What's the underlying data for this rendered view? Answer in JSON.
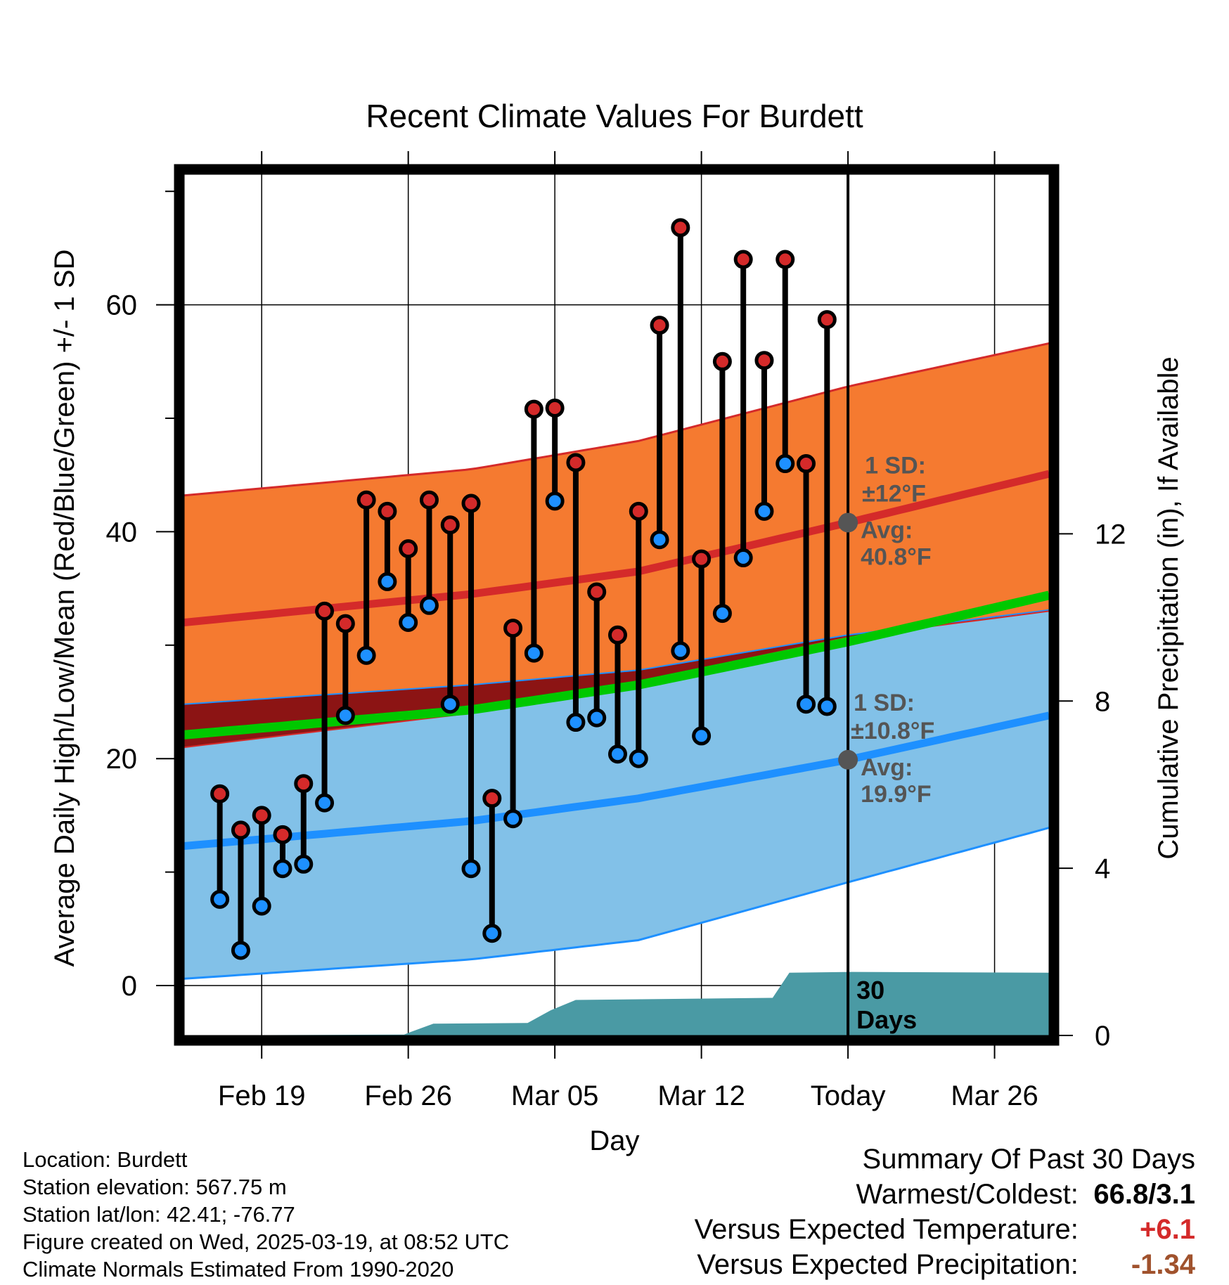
{
  "chart_data": {
    "type": "line",
    "title": "Recent Climate Values For Burdett",
    "xlabel": "Day",
    "ylabel": "Average Daily High/Low/Mean (Red/Blue/Green) +/- 1 SD",
    "y2label": "Cumulative Precipitation (in), If Available",
    "x_ticks": [
      "Feb 19",
      "Feb 26",
      "Mar 05",
      "Mar 12",
      "Today",
      "Mar 26"
    ],
    "ylim": [
      -4.4,
      71.5
    ],
    "y_ticks": [
      0,
      20,
      40,
      60
    ],
    "y2lim": [
      0,
      20.6
    ],
    "y2_ticks": [
      0,
      4,
      8,
      12
    ],
    "x_range_days": [
      -31.7,
      9.6
    ],
    "normal_high": {
      "avg": [
        [
          -31.7,
          32.0
        ],
        [
          -18,
          34.5
        ],
        [
          -10,
          36.5
        ],
        [
          0,
          40.8
        ],
        [
          9.6,
          45.1
        ]
      ],
      "upper": [
        [
          -31.7,
          43.2
        ],
        [
          -18,
          45.5
        ],
        [
          -10,
          48.0
        ],
        [
          0,
          52.8
        ],
        [
          9.6,
          56.6
        ]
      ],
      "lower": [
        [
          -31.7,
          24.8
        ],
        [
          -18,
          26.5
        ],
        [
          -10,
          27.8
        ],
        [
          0,
          30.9
        ],
        [
          9.6,
          33.1
        ]
      ]
    },
    "normal_low": {
      "avg": [
        [
          -31.7,
          12.3
        ],
        [
          -18,
          14.5
        ],
        [
          -10,
          16.5
        ],
        [
          0,
          19.9
        ],
        [
          9.6,
          23.8
        ]
      ],
      "upper": [
        [
          -31.7,
          21.0
        ],
        [
          -18,
          24.0
        ],
        [
          -10,
          26.8
        ],
        [
          0,
          30.7
        ],
        [
          9.6,
          33.0
        ]
      ],
      "lower": [
        [
          -31.7,
          0.6
        ],
        [
          -18,
          2.3
        ],
        [
          -10,
          4.0
        ],
        [
          0,
          9.1
        ],
        [
          9.6,
          13.9
        ]
      ]
    },
    "normal_mean": [
      [
        -31.7,
        22.1
      ],
      [
        -18,
        24.3
      ],
      [
        -10,
        26.5
      ],
      [
        0,
        30.3
      ],
      [
        9.6,
        34.4
      ]
    ],
    "daily": [
      {
        "day": -30,
        "high": 16.9,
        "low": 7.6
      },
      {
        "day": -29,
        "high": 13.7,
        "low": 3.1
      },
      {
        "day": -28,
        "high": 15.0,
        "low": 7.0
      },
      {
        "day": -27,
        "high": 13.3,
        "low": 10.3
      },
      {
        "day": -26,
        "high": 17.8,
        "low": 10.7
      },
      {
        "day": -25,
        "high": 33.0,
        "low": 16.1
      },
      {
        "day": -24,
        "high": 31.9,
        "low": 23.8
      },
      {
        "day": -23,
        "high": 42.8,
        "low": 29.1
      },
      {
        "day": -22,
        "high": 41.8,
        "low": 35.6
      },
      {
        "day": -21,
        "high": 38.5,
        "low": 32.0
      },
      {
        "day": -20,
        "high": 42.8,
        "low": 33.5
      },
      {
        "day": -19,
        "high": 40.6,
        "low": 24.8
      },
      {
        "day": -18,
        "high": 42.5,
        "low": 10.3
      },
      {
        "day": -17,
        "high": 16.5,
        "low": 4.6
      },
      {
        "day": -16,
        "high": 31.5,
        "low": 14.7
      },
      {
        "day": -15,
        "high": 50.8,
        "low": 29.3
      },
      {
        "day": -14,
        "high": 50.9,
        "low": 42.7
      },
      {
        "day": -13,
        "high": 46.1,
        "low": 23.2
      },
      {
        "day": -12,
        "high": 34.7,
        "low": 23.6
      },
      {
        "day": -11,
        "high": 30.9,
        "low": 20.4
      },
      {
        "day": -10,
        "high": 41.8,
        "low": 20.0
      },
      {
        "day": -9,
        "high": 58.2,
        "low": 39.3
      },
      {
        "day": -8,
        "high": 66.8,
        "low": 29.5
      },
      {
        "day": -7,
        "high": 37.6,
        "low": 22.0
      },
      {
        "day": -6,
        "high": 55.0,
        "low": 32.8
      },
      {
        "day": -5,
        "high": 64.0,
        "low": 37.7
      },
      {
        "day": -4,
        "high": 55.1,
        "low": 41.8
      },
      {
        "day": -3,
        "high": 64.0,
        "low": 46.0
      },
      {
        "day": -2,
        "high": 46.0,
        "low": 24.8
      },
      {
        "day": -1,
        "high": 58.7,
        "low": 24.6
      }
    ],
    "precip_cumulative": [
      [
        -31.7,
        0
      ],
      [
        -21.2,
        0.02
      ],
      [
        -20.9,
        0.08
      ],
      [
        -19.8,
        0.28
      ],
      [
        -15.3,
        0.3
      ],
      [
        -14.2,
        0.6
      ],
      [
        -13,
        0.85
      ],
      [
        -3.6,
        0.9
      ],
      [
        -2.8,
        1.5
      ],
      [
        0.2,
        1.52
      ],
      [
        9.6,
        1.5
      ]
    ],
    "annotations": {
      "high_sd": "1 SD:",
      "high_sd_val": "±12°F",
      "high_avg": "Avg:",
      "high_avg_val": "40.8°F",
      "low_sd": "1 SD:",
      "low_sd_val": "±10.8°F",
      "low_avg": "Avg:",
      "low_avg_val": "19.9°F",
      "days_num": "30",
      "days_word": "Days"
    },
    "colors": {
      "high_band": "#f57a30",
      "high_line": "#d42a2a",
      "low_band": "#82c1e8",
      "low_line": "#1e90ff",
      "overlap_band": "#8c1414",
      "mean_line": "#00c800",
      "precip": "#4a9aa4",
      "high_marker": "#d42a2a",
      "low_marker": "#1e90ff",
      "annotation": "#555555"
    }
  },
  "footer": {
    "location": "Location: Burdett",
    "elevation": "Station elevation: 567.75 m",
    "latlon": "Station lat/lon: 42.41; -76.77",
    "created": "Figure created on Wed, 2025-03-19, at 08:52 UTC",
    "normals": "Climate Normals Estimated From 1990-2020"
  },
  "summary": {
    "title": "Summary Of Past 30 Days",
    "warm_label": "Warmest/Coldest:",
    "warm_value": "66.8/3.1",
    "temp_label": "Versus Expected Temperature:",
    "temp_value": "+6.1",
    "temp_color": "#d42a2a",
    "precip_label": "Versus Expected Precipitation:",
    "precip_value": "-1.34",
    "precip_color": "#a0522d"
  }
}
